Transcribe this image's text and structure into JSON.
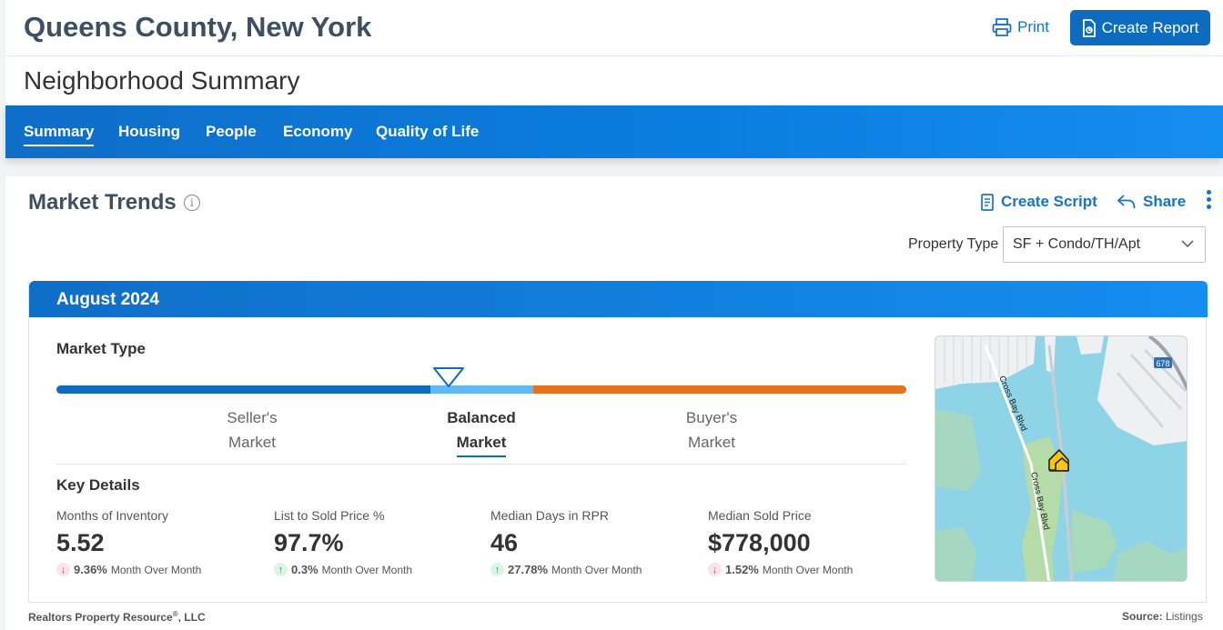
{
  "header": {
    "title": "Queens County, New York",
    "print_label": "Print",
    "create_report_label": "Create Report",
    "subtitle": "Neighborhood Summary"
  },
  "tabs": [
    {
      "label": "Summary",
      "active": true
    },
    {
      "label": "Housing",
      "active": false
    },
    {
      "label": "People",
      "active": false
    },
    {
      "label": "Economy",
      "active": false
    },
    {
      "label": "Quality of Life",
      "active": false
    }
  ],
  "market_trends": {
    "title": "Market Trends",
    "info_icon": "i",
    "create_script_label": "Create Script",
    "share_label": "Share",
    "property_type_label": "Property Type",
    "property_type_value": "SF + Condo/TH/Apt"
  },
  "period": {
    "label": "August 2024"
  },
  "market_type": {
    "title": "Market Type",
    "sellers_line1": "Seller's",
    "sellers_line2": "Market",
    "balanced_line1": "Balanced",
    "balanced_line2": "Market",
    "buyers_line1": "Buyer's",
    "buyers_line2": "Market",
    "selected": "Balanced Market"
  },
  "key_details": {
    "title": "Key Details",
    "stats": [
      {
        "label": "Months of Inventory",
        "value": "5.52",
        "direction": "down",
        "change": "9.36%",
        "change_label": "Month Over Month"
      },
      {
        "label": "List to Sold Price %",
        "value": "97.7%",
        "direction": "up",
        "change": "0.3%",
        "change_label": "Month Over Month"
      },
      {
        "label": "Median Days in RPR",
        "value": "46",
        "direction": "up",
        "change": "27.78%",
        "change_label": "Month Over Month"
      },
      {
        "label": "Median Sold Price",
        "value": "$778,000",
        "direction": "down",
        "change": "1.52%",
        "change_label": "Month Over Month"
      }
    ]
  },
  "map": {
    "road_label_1": "Cross Bay Blvd",
    "road_label_2": "Cross Bay Blvd",
    "highway_shield": "678"
  },
  "footer": {
    "left": "Realtors Property Resource",
    "left_mark": "®",
    "left_suffix": ", LLC",
    "source_label": "Source:",
    "source_value": "Listings"
  },
  "colors": {
    "primary_blue": "#0e6cc0",
    "balanced_blue": "#62b9f5",
    "buyer_orange": "#e8711f",
    "down_red": "#d93a3a",
    "up_green": "#1e9c55"
  }
}
